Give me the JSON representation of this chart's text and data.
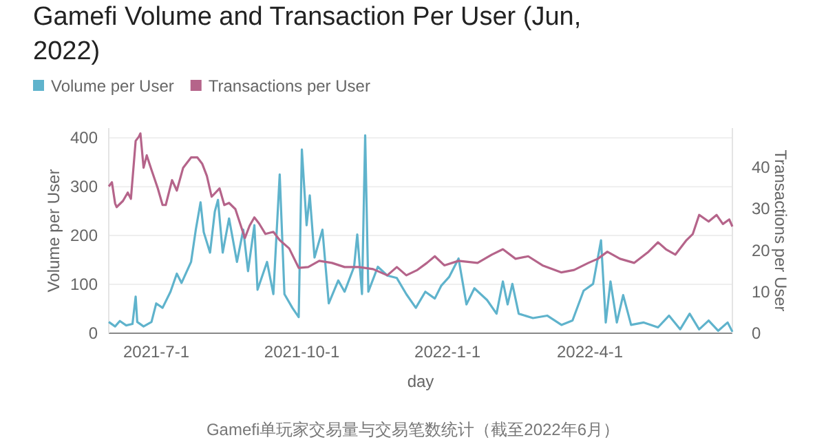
{
  "chart_data": {
    "type": "line",
    "title": "Gamefi Volume and Transaction Per User (Jun, 2022)",
    "xlabel": "day",
    "ylabel": "Volume per User",
    "y2label": "Transactions per User",
    "annotations": [
      "Gamefi单玩家交易量与交易笔数统计（截至2022年6月）"
    ],
    "xlim": [
      "2021-06-01",
      "2022-06-30"
    ],
    "xticks": [
      {
        "value": "2021-07-01",
        "label": "2021-7-1"
      },
      {
        "value": "2021-10-01",
        "label": "2021-10-1"
      },
      {
        "value": "2022-01-01",
        "label": "2022-1-1"
      },
      {
        "value": "2022-04-01",
        "label": "2022-4-1"
      }
    ],
    "ylim": [
      0,
      420
    ],
    "yticks": [
      0,
      100,
      200,
      300,
      400
    ],
    "y2lim": [
      0,
      49.6
    ],
    "y2ticks": [
      0,
      10,
      20,
      30,
      40
    ],
    "grid": "y",
    "legend": "top left",
    "line_style": "solid",
    "marker": "none",
    "series": [
      {
        "name": "Volume per User",
        "color": "#5fb3cc",
        "x": [
          "2021-06-01",
          "2021-06-05",
          "2021-06-08",
          "2021-06-12",
          "2021-06-16",
          "2021-06-18",
          "2021-06-19",
          "2021-06-23",
          "2021-06-28",
          "2021-07-01",
          "2021-07-05",
          "2021-07-10",
          "2021-07-14",
          "2021-07-17",
          "2021-07-23",
          "2021-07-26",
          "2021-07-29",
          "2021-07-31",
          "2021-08-04",
          "2021-08-07",
          "2021-08-09",
          "2021-08-12",
          "2021-08-16",
          "2021-08-21",
          "2021-08-25",
          "2021-08-28",
          "2021-09-01",
          "2021-09-03",
          "2021-09-09",
          "2021-09-13",
          "2021-09-17",
          "2021-09-20",
          "2021-09-25",
          "2021-09-29",
          "2021-10-01",
          "2021-10-04",
          "2021-10-06",
          "2021-10-09",
          "2021-10-14",
          "2021-10-18",
          "2021-10-24",
          "2021-10-28",
          "2021-11-03",
          "2021-11-05",
          "2021-11-08",
          "2021-11-10",
          "2021-11-12",
          "2021-11-18",
          "2021-11-24",
          "2021-11-30",
          "2021-12-06",
          "2021-12-12",
          "2021-12-18",
          "2021-12-24",
          "2021-12-28",
          "2022-01-02",
          "2022-01-08",
          "2022-01-13",
          "2022-01-18",
          "2022-01-26",
          "2022-02-01",
          "2022-02-05",
          "2022-02-08",
          "2022-02-11",
          "2022-02-15",
          "2022-02-24",
          "2022-03-05",
          "2022-03-14",
          "2022-03-21",
          "2022-03-28",
          "2022-04-03",
          "2022-04-08",
          "2022-04-11",
          "2022-04-14",
          "2022-04-18",
          "2022-04-22",
          "2022-04-27",
          "2022-05-05",
          "2022-05-14",
          "2022-05-21",
          "2022-05-28",
          "2022-06-03",
          "2022-06-09",
          "2022-06-15",
          "2022-06-21",
          "2022-06-27",
          "2022-06-30"
        ],
        "values": [
          23,
          14,
          25,
          16,
          19,
          75,
          23,
          14,
          23,
          61,
          52,
          85,
          122,
          103,
          146,
          212,
          268,
          207,
          165,
          249,
          273,
          165,
          235,
          146,
          212,
          127,
          221,
          89,
          146,
          80,
          325,
          80,
          52,
          33,
          376,
          221,
          282,
          155,
          212,
          61,
          108,
          85,
          136,
          202,
          80,
          405,
          85,
          136,
          118,
          113,
          80,
          52,
          85,
          71,
          97,
          115,
          153,
          59,
          92,
          68,
          40,
          106,
          59,
          101,
          40,
          31,
          36,
          17,
          26,
          87,
          101,
          190,
          22,
          106,
          22,
          78,
          17,
          22,
          12,
          36,
          8,
          40,
          8,
          26,
          5,
          22,
          3
        ]
      },
      {
        "name": "Transactions per User",
        "color": "#b5648a",
        "axis": "y2",
        "x": [
          "2021-06-01",
          "2021-06-03",
          "2021-06-05",
          "2021-06-06",
          "2021-06-10",
          "2021-06-13",
          "2021-06-15",
          "2021-06-18",
          "2021-06-20",
          "2021-06-21",
          "2021-06-23",
          "2021-06-25",
          "2021-06-28",
          "2021-07-02",
          "2021-07-05",
          "2021-07-07",
          "2021-07-11",
          "2021-07-14",
          "2021-07-18",
          "2021-07-23",
          "2021-07-27",
          "2021-07-30",
          "2021-08-02",
          "2021-08-05",
          "2021-08-10",
          "2021-08-13",
          "2021-08-16",
          "2021-08-20",
          "2021-08-26",
          "2021-08-29",
          "2021-09-01",
          "2021-09-04",
          "2021-09-08",
          "2021-09-13",
          "2021-09-17",
          "2021-09-23",
          "2021-09-29",
          "2021-10-05",
          "2021-10-12",
          "2021-10-20",
          "2021-10-28",
          "2021-11-06",
          "2021-11-15",
          "2021-11-24",
          "2021-11-30",
          "2021-12-06",
          "2021-12-13",
          "2021-12-19",
          "2021-12-24",
          "2021-12-30",
          "2022-01-08",
          "2022-01-20",
          "2022-01-29",
          "2022-02-05",
          "2022-02-13",
          "2022-02-21",
          "2022-03-02",
          "2022-03-14",
          "2022-03-22",
          "2022-03-31",
          "2022-04-06",
          "2022-04-12",
          "2022-04-20",
          "2022-04-29",
          "2022-05-08",
          "2022-05-14",
          "2022-05-19",
          "2022-05-25",
          "2022-06-01",
          "2022-06-05",
          "2022-06-09",
          "2022-06-15",
          "2022-06-20",
          "2022-06-24",
          "2022-06-28",
          "2022-06-30"
        ],
        "values": [
          35.5,
          36.5,
          31.4,
          30.5,
          32,
          34,
          32.5,
          46.5,
          47.5,
          48.3,
          40,
          43,
          39.5,
          35,
          31,
          31,
          37,
          34.5,
          40,
          42.5,
          42.5,
          41,
          38,
          33,
          35,
          31,
          31.5,
          30,
          23,
          26,
          28,
          26.5,
          24,
          24.5,
          22.5,
          20.5,
          15.8,
          16,
          17.5,
          17,
          16,
          16,
          15.5,
          14,
          16,
          14,
          15.3,
          17,
          18.6,
          16.4,
          17.5,
          17,
          19,
          20.3,
          18,
          18.6,
          16.4,
          14.7,
          15.3,
          17,
          18,
          19.7,
          18,
          17,
          19.7,
          22,
          20.3,
          19,
          22.5,
          24,
          28.6,
          27,
          28.6,
          26.4,
          27.5,
          25.8
        ]
      }
    ]
  }
}
